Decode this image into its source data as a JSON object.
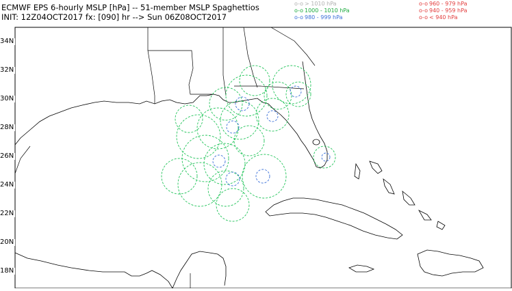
{
  "header": {
    "title_line1": "ECMWF EPS 6-hourly MSLP [hPa] -- 51-member MSLP Spaghettios",
    "title_line2": "INIT: 12Z04OCT2017 fx: [090] hr --> Sun 06Z08OCT2017"
  },
  "legend": {
    "left": [
      {
        "symbol": "o-o",
        "label": "> 1010 hPa",
        "color": "#b0b0b0"
      },
      {
        "symbol": "o-o",
        "label": "1000 - 1010 hPa",
        "color": "#1aaa3c"
      },
      {
        "symbol": "o-o",
        "label": "980 - 999 hPa",
        "color": "#3a6fd8"
      }
    ],
    "right": [
      {
        "symbol": "o-o",
        "label": "960 - 979 hPa",
        "color": "#e23b3b"
      },
      {
        "symbol": "o-o",
        "label": "940 - 959 hPa",
        "color": "#e23b3b"
      },
      {
        "symbol": "o-o",
        "label": "< 940 hPa",
        "color": "#e23b3b"
      }
    ]
  },
  "map": {
    "lat_labels": [
      "34N",
      "32N",
      "30N",
      "28N",
      "26N",
      "24N",
      "22N",
      "20N",
      "18N"
    ],
    "colors": {
      "coast": "#000000",
      "green": "#22c45a",
      "blue": "#3a6fd8"
    }
  }
}
